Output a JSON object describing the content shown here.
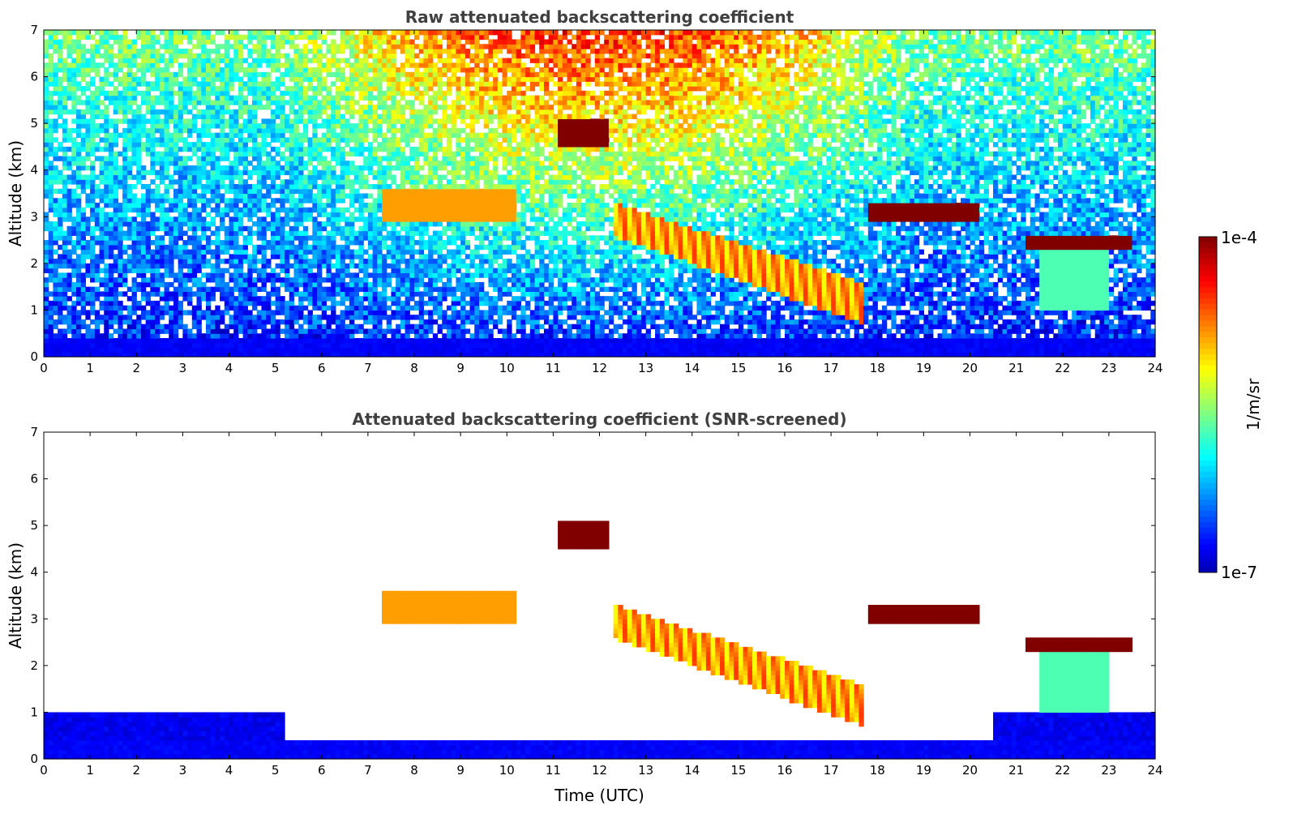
{
  "chart_data": [
    {
      "type": "heatmap",
      "title": "Raw attenuated backscattering coefficient",
      "xlabel": "",
      "ylabel": "Altitude (km)",
      "xlim": [
        0,
        24
      ],
      "ylim": [
        0,
        7
      ],
      "xticks": [
        "0",
        "1",
        "2",
        "3",
        "4",
        "5",
        "6",
        "7",
        "8",
        "9",
        "10",
        "11",
        "12",
        "13",
        "14",
        "15",
        "16",
        "17",
        "18",
        "19",
        "20",
        "21",
        "22",
        "23",
        "24"
      ],
      "yticks": [
        "0",
        "1",
        "2",
        "3",
        "4",
        "5",
        "6",
        "7"
      ],
      "screened": false,
      "features": [
        {
          "kind": "aerosol-layer",
          "time": [
            7.3,
            10.2
          ],
          "alt": [
            2.9,
            3.6
          ],
          "level": 0.72
        },
        {
          "kind": "descending-layer",
          "time": [
            12.3,
            17.7
          ],
          "alt_start": [
            2.6,
            3.3
          ],
          "alt_end": [
            0.7,
            1.6
          ],
          "level": 0.82
        },
        {
          "kind": "cloud",
          "time": [
            11.1,
            12.2
          ],
          "alt": [
            4.5,
            5.1
          ],
          "level": 1.0
        },
        {
          "kind": "cloud",
          "time": [
            17.8,
            20.2
          ],
          "alt": [
            2.9,
            3.3
          ],
          "level": 1.0
        },
        {
          "kind": "cloud",
          "time": [
            21.2,
            23.5
          ],
          "alt": [
            2.3,
            2.65
          ],
          "level": 1.0
        },
        {
          "kind": "virga",
          "time": [
            21.5,
            23.0
          ],
          "alt": [
            1.0,
            2.4
          ],
          "level": 0.45
        }
      ]
    },
    {
      "type": "heatmap",
      "title": "Attenuated backscattering coefficient (SNR-screened)",
      "xlabel": "Time (UTC)",
      "ylabel": "Altitude (km)",
      "xlim": [
        0,
        24
      ],
      "ylim": [
        0,
        7
      ],
      "xticks": [
        "0",
        "1",
        "2",
        "3",
        "4",
        "5",
        "6",
        "7",
        "8",
        "9",
        "10",
        "11",
        "12",
        "13",
        "14",
        "15",
        "16",
        "17",
        "18",
        "19",
        "20",
        "21",
        "22",
        "23",
        "24"
      ],
      "yticks": [
        "0",
        "1",
        "2",
        "3",
        "4",
        "5",
        "6",
        "7"
      ],
      "screened": true,
      "features": [
        {
          "kind": "aerosol-layer",
          "time": [
            7.3,
            10.2
          ],
          "alt": [
            2.9,
            3.6
          ],
          "level": 0.72
        },
        {
          "kind": "descending-layer",
          "time": [
            12.3,
            17.7
          ],
          "alt_start": [
            2.6,
            3.3
          ],
          "alt_end": [
            0.7,
            1.6
          ],
          "level": 0.82
        },
        {
          "kind": "cloud",
          "time": [
            11.1,
            12.2
          ],
          "alt": [
            4.5,
            5.1
          ],
          "level": 1.0
        },
        {
          "kind": "cloud",
          "time": [
            17.8,
            20.2
          ],
          "alt": [
            2.9,
            3.3
          ],
          "level": 1.0
        },
        {
          "kind": "cloud",
          "time": [
            21.2,
            23.5
          ],
          "alt": [
            2.3,
            2.65
          ],
          "level": 1.0
        },
        {
          "kind": "virga",
          "time": [
            21.5,
            23.0
          ],
          "alt": [
            1.0,
            2.4
          ],
          "level": 0.45
        }
      ]
    }
  ],
  "colorbar": {
    "label": "1/m/sr",
    "max_label": "1e-4",
    "min_label": "1e-7",
    "colormap": "jet",
    "range": [
      1e-07,
      0.0001
    ]
  }
}
